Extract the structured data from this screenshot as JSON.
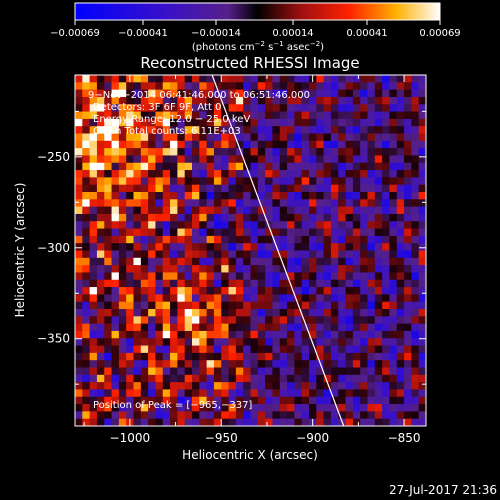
{
  "colorbar": {
    "ticks": [
      "−0.00069",
      "−0.00041",
      "−0.00014",
      "0.00014",
      "0.00041",
      "0.00069"
    ],
    "unit_main": "(photons cm",
    "unit_exp1": "−2",
    "unit_mid": " s",
    "unit_exp2": "−1",
    "unit_mid2": " asec",
    "unit_exp3": "−2",
    "unit_end": ")"
  },
  "chart_data": {
    "type": "heatmap",
    "title": "Reconstructed RHESSI Image",
    "xlabel": "Heliocentric X (arcsec)",
    "ylabel": "Heliocentric Y (arcsec)",
    "xlim": [
      -1030,
      -838
    ],
    "ylim": [
      -398,
      -205
    ],
    "xticks": [
      -1000,
      -950,
      -900,
      -850
    ],
    "yticks": [
      -250,
      -300,
      -350
    ],
    "xtick_labels": [
      "−1000",
      "−950",
      "−900",
      "−850"
    ],
    "ytick_labels": [
      "−250",
      "−300",
      "−350"
    ],
    "color_range": [
      -0.00069,
      0.00069
    ],
    "limb_line": [
      [
        -955,
        -205
      ],
      [
        -883,
        -398
      ]
    ],
    "peak": [
      -965,
      -337
    ],
    "annotations": [
      "9−Nov−2014 06:41:46.000 to 06:51:46.000",
      "Detectors: 3F 6F 9F, Att 0",
      "Energy Range: 12.0 − 25.0 keV",
      "Clean    Total counts: 6.11E+03"
    ],
    "peak_label": "Position of Peak = [−965,−337]"
  },
  "footer": {
    "timestamp": "27-Jul-2017 21:36"
  }
}
